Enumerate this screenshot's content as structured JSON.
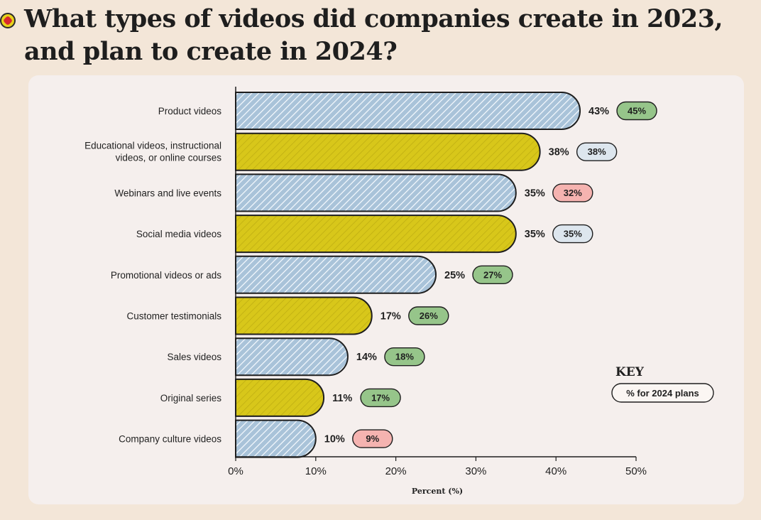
{
  "header": {
    "title_line1": "What types of videos did companies create in 2023,",
    "title_line2": "and plan to create in 2024?"
  },
  "colors": {
    "blue_bar": "#a9c3d9",
    "yellow_bar": "#d8c71a",
    "pill_green": "#96c58a",
    "pill_blue": "#dde6ee",
    "pill_red": "#f5b3b0",
    "key_pill": "#fbf6f3",
    "outline": "#1e1e1e"
  },
  "chart_data": {
    "type": "bar",
    "orientation": "horizontal",
    "title": "What types of videos did companies create in 2023, and plan to create in 2024?",
    "xlabel": "Percent (%)",
    "ylabel": "",
    "xlim": [
      0,
      50
    ],
    "ticks": [
      "0%",
      "10%",
      "20%",
      "30%",
      "40%",
      "50%"
    ],
    "categories": [
      [
        "Product videos"
      ],
      [
        "Educational videos, instructional",
        "videos, or online courses"
      ],
      [
        "Webinars and live events"
      ],
      [
        "Social media videos"
      ],
      [
        "Promotional videos or ads"
      ],
      [
        "Customer testimonials"
      ],
      [
        "Sales videos"
      ],
      [
        "Original series"
      ],
      [
        "Company culture videos"
      ]
    ],
    "series": [
      {
        "name": "2023",
        "values": [
          43,
          38,
          35,
          35,
          25,
          17,
          14,
          11,
          10
        ]
      },
      {
        "name": "2024 plans",
        "values": [
          45,
          38,
          32,
          35,
          27,
          26,
          18,
          17,
          9
        ]
      }
    ],
    "bar_colors": [
      "blue",
      "yellow",
      "blue",
      "yellow",
      "blue",
      "yellow",
      "blue",
      "yellow",
      "blue"
    ],
    "value_labels": [
      "43%",
      "38%",
      "35%",
      "35%",
      "25%",
      "17%",
      "14%",
      "11%",
      "10%"
    ],
    "plan_labels": [
      "45%",
      "38%",
      "32%",
      "35%",
      "27%",
      "26%",
      "18%",
      "17%",
      "9%"
    ],
    "plan_colors": [
      "green",
      "blue",
      "red",
      "blue",
      "green",
      "green",
      "green",
      "green",
      "red"
    ],
    "key": {
      "title": "KEY",
      "text": "% for 2024 plans"
    }
  }
}
